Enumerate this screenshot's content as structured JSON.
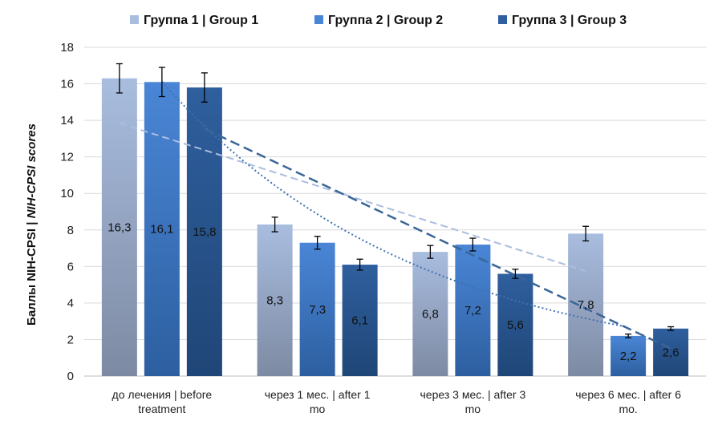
{
  "chart_data": {
    "type": "bar",
    "ylabel_part1": "Баллы NIH-CPSI | ",
    "ylabel_part2": "NIH-CPSI scores",
    "ylim": [
      0,
      18
    ],
    "yticks": [
      "0",
      "2",
      "4",
      "6",
      "8",
      "10",
      "12",
      "14",
      "16",
      "18"
    ],
    "grid": true,
    "legend_position": "top",
    "categories": [
      [
        "до лечения | before",
        "treatment"
      ],
      [
        "через 1 мес. | after 1",
        "mo"
      ],
      [
        "через 3 мес. | after 3",
        "mo"
      ],
      [
        "через 6 мес. | after 6",
        "mo."
      ]
    ],
    "series": [
      {
        "name": "Группа 1 | Group 1",
        "values": [
          16.3,
          8.3,
          6.8,
          7.8
        ],
        "labels": [
          "16,3",
          "8,3",
          "6,8",
          "7,8"
        ],
        "errors": [
          0.8,
          0.4,
          0.35,
          0.4
        ],
        "color_top": "#a9bddf",
        "color_bottom": "#7d8aa3",
        "trend": "linear",
        "trend_color": "#a9bddf"
      },
      {
        "name": "Группа 2 | Group 2",
        "values": [
          16.1,
          7.3,
          7.2,
          2.2
        ],
        "labels": [
          "16,1",
          "7,3",
          "7,2",
          "2,2"
        ],
        "errors": [
          0.8,
          0.35,
          0.35,
          0.1
        ],
        "color_top": "#4a86d6",
        "color_bottom": "#2d5fa0",
        "trend": "exponential",
        "trend_color": "#3f70b0"
      },
      {
        "name": "Группа 3 | Group 3",
        "values": [
          15.8,
          6.1,
          5.6,
          2.6
        ],
        "labels": [
          "15,8",
          "6,1",
          "5,6",
          "2,6"
        ],
        "errors": [
          0.8,
          0.3,
          0.25,
          0.1
        ],
        "color_top": "#2f5f9e",
        "color_bottom": "#1f4677",
        "trend": "linear",
        "trend_color": "#3a6598"
      }
    ]
  }
}
